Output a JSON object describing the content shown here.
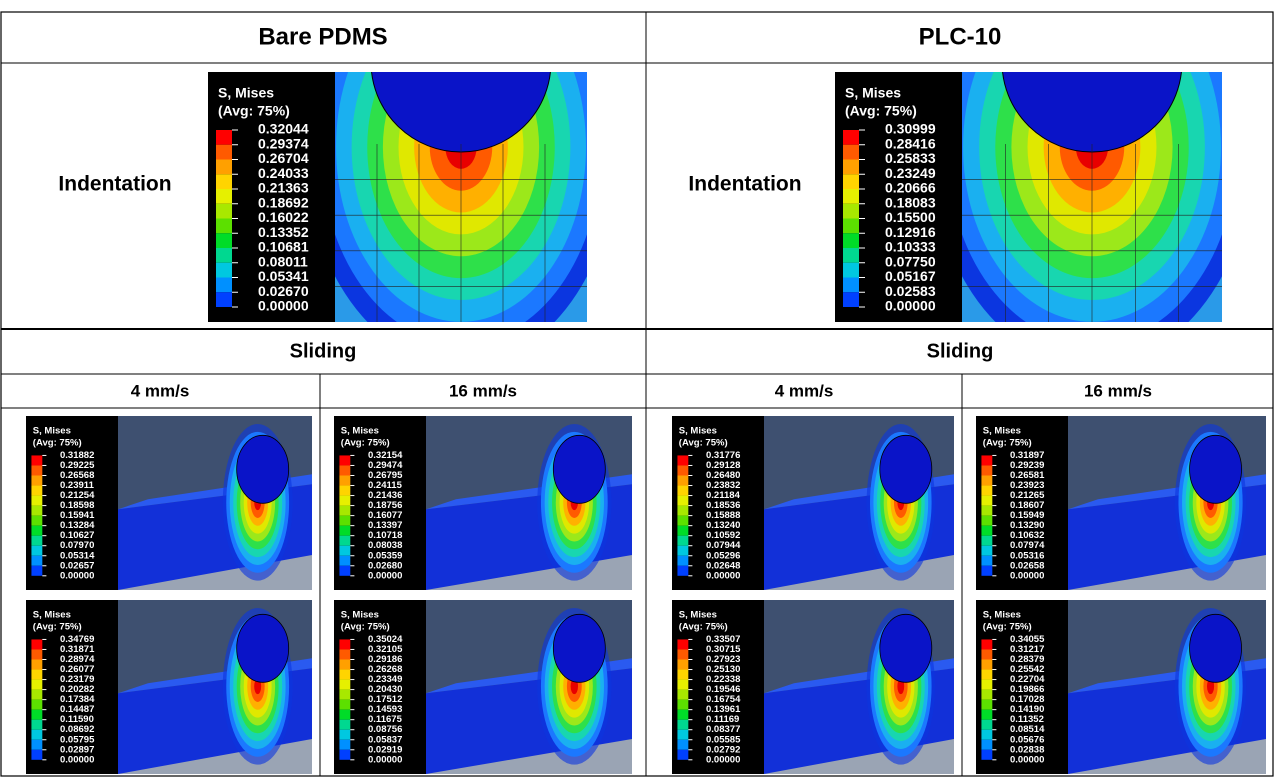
{
  "columns": [
    {
      "title": "Bare PDMS",
      "indentation": {
        "label": "Indentation",
        "legend": {
          "title": "S, Mises",
          "subtitle": "(Avg: 75%)",
          "values": [
            "0.32044",
            "0.29374",
            "0.26704",
            "0.24033",
            "0.21363",
            "0.18692",
            "0.16022",
            "0.13352",
            "0.10681",
            "0.08011",
            "0.05341",
            "0.02670",
            "0.00000"
          ]
        }
      },
      "sliding": {
        "title": "Sliding",
        "speeds": [
          {
            "label": "4 mm/s",
            "panels": [
              {
                "title": "S, Mises",
                "subtitle": "(Avg: 75%)",
                "values": [
                  "0.31882",
                  "0.29225",
                  "0.26568",
                  "0.23911",
                  "0.21254",
                  "0.18598",
                  "0.15941",
                  "0.13284",
                  "0.10627",
                  "0.07970",
                  "0.05314",
                  "0.02657",
                  "0.00000"
                ]
              },
              {
                "title": "S, Mises",
                "subtitle": "(Avg: 75%)",
                "values": [
                  "0.34769",
                  "0.31871",
                  "0.28974",
                  "0.26077",
                  "0.23179",
                  "0.20282",
                  "0.17384",
                  "0.14487",
                  "0.11590",
                  "0.08692",
                  "0.05795",
                  "0.02897",
                  "0.00000"
                ]
              }
            ]
          },
          {
            "label": "16 mm/s",
            "panels": [
              {
                "title": "S, Mises",
                "subtitle": "(Avg: 75%)",
                "values": [
                  "0.32154",
                  "0.29474",
                  "0.26795",
                  "0.24115",
                  "0.21436",
                  "0.18756",
                  "0.16077",
                  "0.13397",
                  "0.10718",
                  "0.08038",
                  "0.05359",
                  "0.02680",
                  "0.00000"
                ]
              },
              {
                "title": "S, Mises",
                "subtitle": "(Avg: 75%)",
                "values": [
                  "0.35024",
                  "0.32105",
                  "0.29186",
                  "0.26268",
                  "0.23349",
                  "0.20430",
                  "0.17512",
                  "0.14593",
                  "0.11675",
                  "0.08756",
                  "0.05837",
                  "0.02919",
                  "0.00000"
                ]
              }
            ]
          }
        ]
      }
    },
    {
      "title": "PLC-10",
      "indentation": {
        "label": "Indentation",
        "legend": {
          "title": "S, Mises",
          "subtitle": "(Avg: 75%)",
          "values": [
            "0.30999",
            "0.28416",
            "0.25833",
            "0.23249",
            "0.20666",
            "0.18083",
            "0.15500",
            "0.12916",
            "0.10333",
            "0.07750",
            "0.05167",
            "0.02583",
            "0.00000"
          ]
        }
      },
      "sliding": {
        "title": "Sliding",
        "speeds": [
          {
            "label": "4 mm/s",
            "panels": [
              {
                "title": "S, Mises",
                "subtitle": "(Avg: 75%)",
                "values": [
                  "0.31776",
                  "0.29128",
                  "0.26480",
                  "0.23832",
                  "0.21184",
                  "0.18536",
                  "0.15888",
                  "0.13240",
                  "0.10592",
                  "0.07944",
                  "0.05296",
                  "0.02648",
                  "0.00000"
                ]
              },
              {
                "title": "S, Mises",
                "subtitle": "(Avg: 75%)",
                "values": [
                  "0.33507",
                  "0.30715",
                  "0.27923",
                  "0.25130",
                  "0.22338",
                  "0.19546",
                  "0.16754",
                  "0.13961",
                  "0.11169",
                  "0.08377",
                  "0.05585",
                  "0.02792",
                  "0.00000"
                ]
              }
            ]
          },
          {
            "label": "16 mm/s",
            "panels": [
              {
                "title": "S, Mises",
                "subtitle": "(Avg: 75%)",
                "values": [
                  "0.31897",
                  "0.29239",
                  "0.26581",
                  "0.23923",
                  "0.21265",
                  "0.18607",
                  "0.15949",
                  "0.13290",
                  "0.10632",
                  "0.07974",
                  "0.05316",
                  "0.02658",
                  "0.00000"
                ]
              },
              {
                "title": "S, Mises",
                "subtitle": "(Avg: 75%)",
                "values": [
                  "0.34055",
                  "0.31217",
                  "0.28379",
                  "0.25542",
                  "0.22704",
                  "0.19866",
                  "0.17028",
                  "0.14190",
                  "0.11352",
                  "0.08514",
                  "0.05676",
                  "0.02838",
                  "0.00000"
                ]
              }
            ]
          }
        ]
      }
    }
  ]
}
